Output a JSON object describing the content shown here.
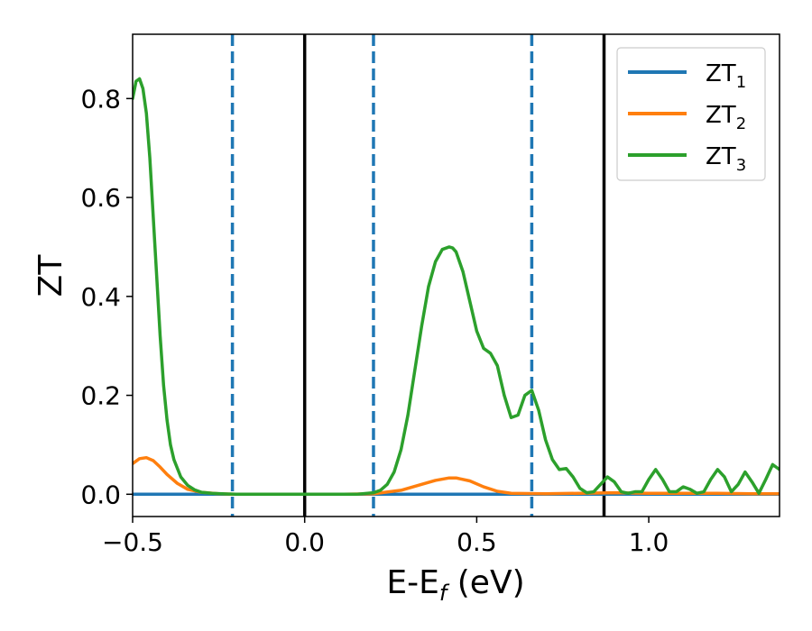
{
  "chart_data": {
    "type": "line",
    "xlabel": {
      "main": "E-E",
      "sub": "f",
      "suffix": " (eV)"
    },
    "ylabel": "ZT",
    "xlim": [
      -0.5,
      1.38
    ],
    "ylim": [
      -0.045,
      0.93
    ],
    "xticks": [
      {
        "value": -0.5,
        "label": "−0.5"
      },
      {
        "value": 0.0,
        "label": "0.0"
      },
      {
        "value": 0.5,
        "label": "0.5"
      },
      {
        "value": 1.0,
        "label": "1.0"
      }
    ],
    "yticks": [
      {
        "value": 0.0,
        "label": "0.0"
      },
      {
        "value": 0.2,
        "label": "0.2"
      },
      {
        "value": 0.4,
        "label": "0.4"
      },
      {
        "value": 0.6,
        "label": "0.6"
      },
      {
        "value": 0.8,
        "label": "0.8"
      }
    ],
    "legend_position": "top-right",
    "series": [
      {
        "name": "ZT",
        "name_sub": "1",
        "color": "#1f77b4",
        "x": [
          -0.5,
          -0.2,
          0.0,
          0.2,
          0.6,
          1.0,
          1.38
        ],
        "y": [
          0.0,
          0.0,
          0.0,
          0.0,
          0.0,
          0.0,
          0.0
        ]
      },
      {
        "name": "ZT",
        "name_sub": "2",
        "color": "#ff7f0e",
        "x": [
          -0.5,
          -0.48,
          -0.46,
          -0.44,
          -0.42,
          -0.4,
          -0.37,
          -0.34,
          -0.3,
          -0.25,
          -0.2,
          -0.1,
          0.0,
          0.1,
          0.2,
          0.28,
          0.34,
          0.38,
          0.42,
          0.44,
          0.48,
          0.52,
          0.56,
          0.6,
          0.7,
          0.8,
          0.9,
          1.0,
          1.1,
          1.2,
          1.3,
          1.38
        ],
        "y": [
          0.062,
          0.072,
          0.074,
          0.068,
          0.055,
          0.04,
          0.022,
          0.01,
          0.004,
          0.001,
          0.0,
          0.0,
          0.0,
          0.0,
          0.001,
          0.008,
          0.02,
          0.028,
          0.033,
          0.033,
          0.027,
          0.015,
          0.006,
          0.002,
          0.001,
          0.002,
          0.003,
          0.002,
          0.002,
          0.002,
          0.001,
          0.001
        ]
      },
      {
        "name": "ZT",
        "name_sub": "3",
        "color": "#2ca02c",
        "x": [
          -0.5,
          -0.49,
          -0.48,
          -0.47,
          -0.46,
          -0.45,
          -0.44,
          -0.43,
          -0.42,
          -0.41,
          -0.4,
          -0.39,
          -0.38,
          -0.36,
          -0.34,
          -0.32,
          -0.3,
          -0.27,
          -0.24,
          -0.2,
          -0.1,
          0.0,
          0.1,
          0.15,
          0.2,
          0.22,
          0.24,
          0.26,
          0.28,
          0.3,
          0.32,
          0.34,
          0.36,
          0.38,
          0.4,
          0.42,
          0.43,
          0.44,
          0.46,
          0.48,
          0.5,
          0.52,
          0.54,
          0.56,
          0.58,
          0.6,
          0.62,
          0.64,
          0.66,
          0.68,
          0.7,
          0.72,
          0.74,
          0.76,
          0.78,
          0.8,
          0.82,
          0.84,
          0.86,
          0.88,
          0.9,
          0.92,
          0.94,
          0.96,
          0.98,
          1.0,
          1.02,
          1.04,
          1.06,
          1.08,
          1.1,
          1.12,
          1.14,
          1.16,
          1.18,
          1.2,
          1.22,
          1.24,
          1.26,
          1.28,
          1.3,
          1.32,
          1.34,
          1.36,
          1.38
        ],
        "y": [
          0.8,
          0.835,
          0.84,
          0.82,
          0.77,
          0.68,
          0.56,
          0.44,
          0.32,
          0.22,
          0.15,
          0.1,
          0.07,
          0.035,
          0.018,
          0.009,
          0.004,
          0.002,
          0.001,
          0.0,
          0.0,
          0.0,
          0.0,
          0.0,
          0.003,
          0.008,
          0.02,
          0.045,
          0.09,
          0.16,
          0.25,
          0.34,
          0.42,
          0.47,
          0.495,
          0.5,
          0.498,
          0.49,
          0.45,
          0.39,
          0.33,
          0.295,
          0.285,
          0.26,
          0.2,
          0.155,
          0.16,
          0.2,
          0.21,
          0.17,
          0.11,
          0.07,
          0.05,
          0.052,
          0.035,
          0.012,
          0.003,
          0.005,
          0.02,
          0.035,
          0.025,
          0.005,
          0.002,
          0.005,
          0.005,
          0.03,
          0.05,
          0.03,
          0.005,
          0.005,
          0.015,
          0.01,
          0.002,
          0.005,
          0.03,
          0.05,
          0.035,
          0.005,
          0.02,
          0.045,
          0.025,
          0.002,
          0.03,
          0.06,
          0.05
        ]
      }
    ],
    "vlines": [
      {
        "x": -0.21,
        "style": "dashed",
        "color": "#1f77b4"
      },
      {
        "x": 0.0,
        "style": "solid",
        "color": "#000000"
      },
      {
        "x": 0.2,
        "style": "dashed",
        "color": "#1f77b4"
      },
      {
        "x": 0.66,
        "style": "dashed",
        "color": "#1f77b4"
      },
      {
        "x": 0.87,
        "style": "solid",
        "color": "#000000"
      }
    ]
  }
}
